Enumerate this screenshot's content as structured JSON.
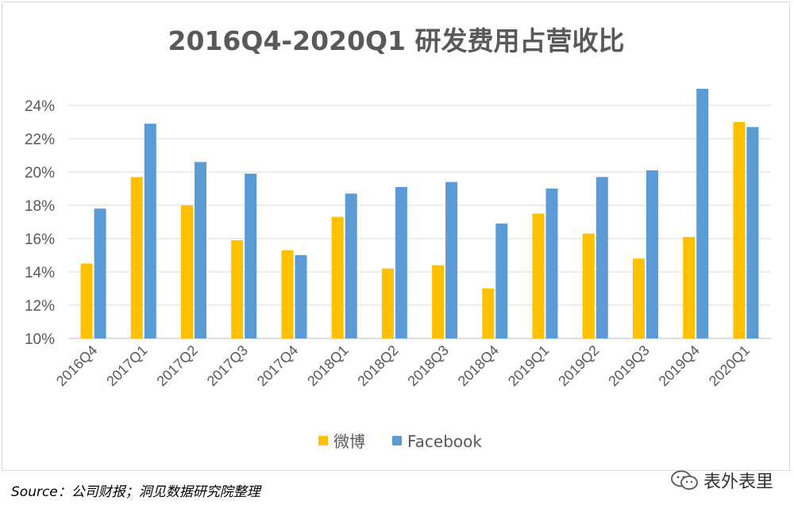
{
  "chart_data": {
    "type": "bar",
    "title": "2016Q4-2020Q1 研发费用占营收比",
    "categories": [
      "2016Q4",
      "2017Q1",
      "2017Q2",
      "2017Q3",
      "2017Q4",
      "2018Q1",
      "2018Q2",
      "2018Q3",
      "2018Q4",
      "2019Q1",
      "2019Q2",
      "2019Q3",
      "2019Q4",
      "2020Q1"
    ],
    "series": [
      {
        "name": "微博",
        "color": "#FFC000",
        "values": [
          14.5,
          19.7,
          18.0,
          15.9,
          15.3,
          17.3,
          14.2,
          14.4,
          13.0,
          17.5,
          16.3,
          14.8,
          16.1,
          23.0
        ]
      },
      {
        "name": "Facebook",
        "color": "#5B9BD5",
        "values": [
          17.8,
          22.9,
          20.6,
          19.9,
          15.0,
          18.7,
          19.1,
          19.4,
          16.9,
          19.0,
          19.7,
          20.1,
          25.0,
          22.7
        ]
      }
    ],
    "ylim": [
      10,
      25
    ],
    "yticks": [
      "10%",
      "12%",
      "14%",
      "16%",
      "18%",
      "20%",
      "22%",
      "24%"
    ],
    "ytick_values": [
      10,
      12,
      14,
      16,
      18,
      20,
      22,
      24
    ],
    "grid": true,
    "legend_position": "bottom"
  },
  "footer": {
    "source": "Source：公司财报；洞见数据研究院整理",
    "watermark": "表外表里",
    "watermark_icon": "wechat-icon"
  }
}
